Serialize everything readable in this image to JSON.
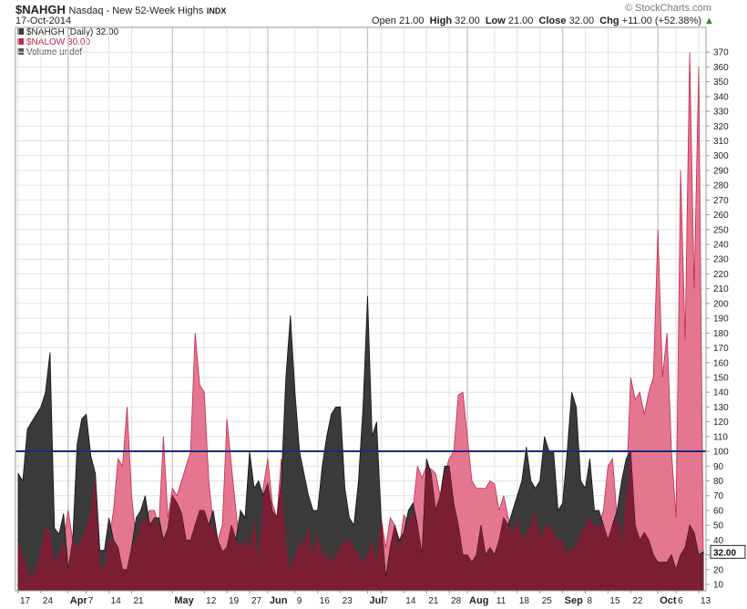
{
  "header": {
    "symbol": "$NAHGH",
    "description": "Nasdaq - New 52-Week Highs",
    "exchange": "INDX",
    "date": "17-Oct-2014",
    "brand": "© StockCharts.com",
    "open_label": "Open",
    "open": "21.00",
    "high_label": "High",
    "high": "32.00",
    "low_label": "Low",
    "low": "21.00",
    "close_label": "Close",
    "close": "32.00",
    "chg_label": "Chg",
    "chg": "+11.00 (+52.38%)",
    "chg_arrow": "▲"
  },
  "legend": [
    {
      "label": "$NAHGH (Daily) 32.00",
      "color": "#333333"
    },
    {
      "label": "$NALOW 30.00",
      "color": "#c0294a"
    },
    {
      "label": "Volume undef",
      "color": "#555555"
    }
  ],
  "colors": {
    "highs_fill": "#3a3a3a",
    "lows_fill": "#e57690",
    "overlap_fill": "#7a1f33",
    "reference_line": "#1a2a80",
    "grid": "#e4e4e4",
    "last_label_bg": "#ffffff"
  },
  "chart_data": {
    "type": "area",
    "ylim": [
      10,
      380
    ],
    "y_ticks": [
      10,
      20,
      30,
      40,
      50,
      60,
      70,
      80,
      90,
      100,
      110,
      120,
      130,
      140,
      150,
      160,
      170,
      180,
      190,
      200,
      210,
      220,
      230,
      240,
      250,
      260,
      270,
      280,
      290,
      300,
      310,
      320,
      330,
      340,
      350,
      360,
      370
    ],
    "reference_line": 100,
    "last_value_label": "32.00",
    "x_ticks": [
      {
        "label": "17",
        "i": 0
      },
      {
        "label": "24",
        "i": 5
      },
      {
        "label": "Apr",
        "i": 11,
        "major": true
      },
      {
        "label": "7",
        "i": 15
      },
      {
        "label": "14",
        "i": 20
      },
      {
        "label": "21",
        "i": 25
      },
      {
        "label": "May",
        "i": 34,
        "major": true
      },
      {
        "label": "12",
        "i": 41
      },
      {
        "label": "19",
        "i": 46
      },
      {
        "label": "27",
        "i": 51
      },
      {
        "label": "Jun",
        "i": 55,
        "major": true
      },
      {
        "label": "9",
        "i": 61
      },
      {
        "label": "16",
        "i": 66
      },
      {
        "label": "23",
        "i": 71
      },
      {
        "label": "Jul",
        "i": 77,
        "major": true
      },
      {
        "label": "7",
        "i": 80
      },
      {
        "label": "14",
        "i": 85
      },
      {
        "label": "21",
        "i": 90
      },
      {
        "label": "28",
        "i": 95
      },
      {
        "label": "Aug",
        "i": 99,
        "major": true
      },
      {
        "label": "11",
        "i": 105
      },
      {
        "label": "18",
        "i": 110
      },
      {
        "label": "25",
        "i": 115
      },
      {
        "label": "Sep",
        "i": 120,
        "major": true
      },
      {
        "label": "8",
        "i": 125
      },
      {
        "label": "15",
        "i": 130
      },
      {
        "label": "22",
        "i": 135
      },
      {
        "label": "Oct",
        "i": 141,
        "major": true
      },
      {
        "label": "6",
        "i": 145
      },
      {
        "label": "13",
        "i": 150
      }
    ],
    "series": [
      {
        "name": "$NAHGH",
        "values": [
          85,
          80,
          115,
          120,
          125,
          130,
          140,
          167,
          48,
          44,
          58,
          20,
          40,
          105,
          122,
          125,
          97,
          85,
          33,
          33,
          55,
          40,
          35,
          20,
          20,
          35,
          55,
          60,
          70,
          50,
          55,
          55,
          40,
          48,
          70,
          65,
          58,
          40,
          40,
          50,
          60,
          60,
          50,
          60,
          40,
          32,
          35,
          50,
          40,
          60,
          55,
          100,
          75,
          80,
          70,
          78,
          60,
          55,
          80,
          150,
          192,
          140,
          100,
          85,
          70,
          60,
          60,
          90,
          110,
          125,
          130,
          130,
          75,
          55,
          50,
          80,
          130,
          205,
          110,
          120,
          55,
          15,
          35,
          50,
          40,
          45,
          60,
          65,
          50,
          30,
          95,
          85,
          60,
          70,
          90,
          90,
          65,
          50,
          30,
          30,
          25,
          30,
          50,
          30,
          35,
          30,
          40,
          55,
          50,
          60,
          70,
          80,
          103,
          80,
          75,
          80,
          110,
          100,
          100,
          60,
          65,
          100,
          140,
          130,
          80,
          75,
          95,
          60,
          60,
          50,
          40,
          50,
          60,
          80,
          95,
          100,
          50,
          40,
          45,
          40,
          30,
          25,
          25,
          25,
          30,
          20,
          30,
          35,
          50,
          45,
          30,
          32
        ],
        "color": "#333333"
      },
      {
        "name": "$NALOW",
        "values": [
          40,
          30,
          20,
          15,
          20,
          35,
          50,
          45,
          25,
          30,
          40,
          60,
          40,
          35,
          40,
          50,
          60,
          85,
          22,
          22,
          40,
          60,
          95,
          90,
          130,
          70,
          40,
          50,
          55,
          60,
          60,
          50,
          110,
          55,
          75,
          70,
          80,
          90,
          100,
          180,
          145,
          140,
          80,
          50,
          40,
          50,
          122,
          90,
          60,
          35,
          40,
          35,
          55,
          25,
          75,
          95,
          65,
          55,
          95,
          40,
          20,
          30,
          40,
          35,
          50,
          30,
          45,
          30,
          30,
          25,
          30,
          35,
          40,
          40,
          35,
          30,
          25,
          30,
          40,
          25,
          55,
          35,
          55,
          50,
          35,
          57,
          52,
          60,
          90,
          82,
          90,
          88,
          85,
          70,
          85,
          95,
          100,
          138,
          140,
          110,
          80,
          75,
          75,
          75,
          80,
          78,
          60,
          70,
          55,
          45,
          55,
          40,
          45,
          50,
          60,
          40,
          50,
          50,
          45,
          40,
          40,
          30,
          35,
          35,
          45,
          50,
          55,
          50,
          50,
          60,
          90,
          95,
          55,
          40,
          70,
          150,
          135,
          140,
          125,
          140,
          150,
          250,
          150,
          180,
          100,
          55,
          290,
          175,
          370,
          210,
          360,
          30
        ],
        "color": "#c0294a"
      }
    ]
  }
}
